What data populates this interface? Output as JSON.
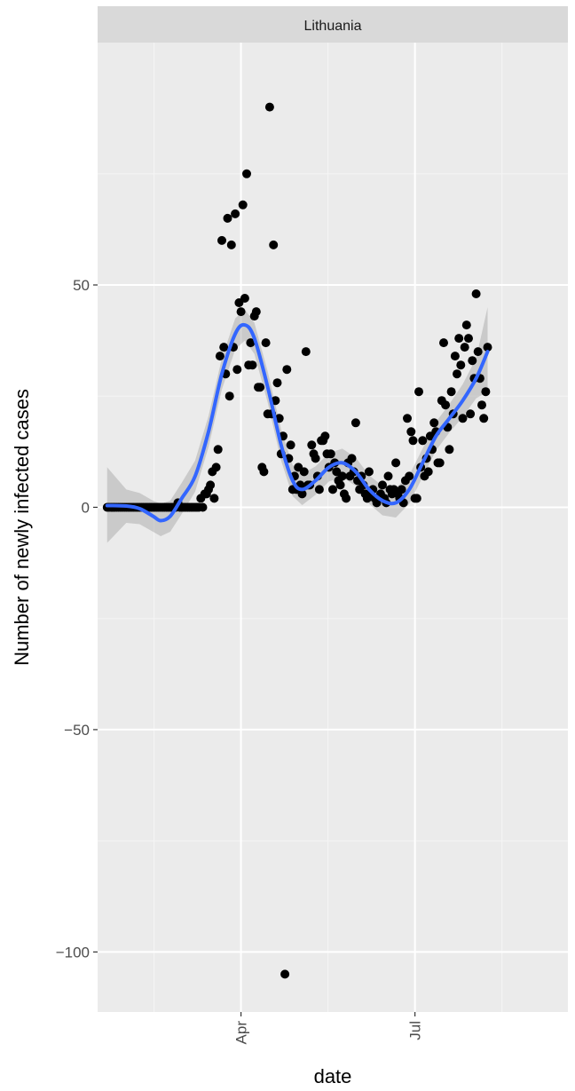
{
  "chart_data": {
    "type": "scatter",
    "panel_title": "Lithuania",
    "xlabel": "date",
    "ylabel": "Number of newly infected cases",
    "x_ticks": [
      {
        "date": "2020-04-01",
        "label": "Apr"
      },
      {
        "date": "2020-07-01",
        "label": "Jul"
      }
    ],
    "y_ticks": [
      {
        "value": 50,
        "label": "50"
      },
      {
        "value": 0,
        "label": "0"
      },
      {
        "value": -50,
        "label": "−50"
      },
      {
        "value": -100,
        "label": "−100"
      }
    ],
    "xlim": [
      "2020-01-17",
      "2020-09-19"
    ],
    "ylim": [
      -113.5,
      104.5
    ],
    "grid": true,
    "legend": "none",
    "colors": {
      "panel_bg": "#ebebeb",
      "strip_bg": "#d9d9d9",
      "grid_major": "#ffffff",
      "grid_minor": "#f5f5f5",
      "point": "#000000",
      "smooth_line": "#3366ff",
      "ribbon": "#999999"
    },
    "points": [
      [
        "2020-01-22",
        0
      ],
      [
        "2020-01-23",
        0
      ],
      [
        "2020-01-24",
        0
      ],
      [
        "2020-01-25",
        0
      ],
      [
        "2020-01-26",
        0
      ],
      [
        "2020-01-27",
        0
      ],
      [
        "2020-01-28",
        0
      ],
      [
        "2020-01-29",
        0
      ],
      [
        "2020-01-30",
        0
      ],
      [
        "2020-01-31",
        0
      ],
      [
        "2020-02-01",
        0
      ],
      [
        "2020-02-02",
        0
      ],
      [
        "2020-02-03",
        0
      ],
      [
        "2020-02-04",
        0
      ],
      [
        "2020-02-05",
        0
      ],
      [
        "2020-02-06",
        0
      ],
      [
        "2020-02-07",
        0
      ],
      [
        "2020-02-08",
        0
      ],
      [
        "2020-02-09",
        0
      ],
      [
        "2020-02-10",
        0
      ],
      [
        "2020-02-11",
        0
      ],
      [
        "2020-02-12",
        0
      ],
      [
        "2020-02-13",
        0
      ],
      [
        "2020-02-14",
        0
      ],
      [
        "2020-02-15",
        0
      ],
      [
        "2020-02-16",
        0
      ],
      [
        "2020-02-17",
        0
      ],
      [
        "2020-02-18",
        0
      ],
      [
        "2020-02-19",
        0
      ],
      [
        "2020-02-20",
        0
      ],
      [
        "2020-02-21",
        0
      ],
      [
        "2020-02-22",
        0
      ],
      [
        "2020-02-23",
        0
      ],
      [
        "2020-02-24",
        0
      ],
      [
        "2020-02-25",
        0
      ],
      [
        "2020-02-26",
        0
      ],
      [
        "2020-02-27",
        0
      ],
      [
        "2020-02-28",
        1
      ],
      [
        "2020-02-29",
        0
      ],
      [
        "2020-03-01",
        0
      ],
      [
        "2020-03-02",
        0
      ],
      [
        "2020-03-03",
        0
      ],
      [
        "2020-03-04",
        0
      ],
      [
        "2020-03-05",
        0
      ],
      [
        "2020-03-06",
        0
      ],
      [
        "2020-03-07",
        0
      ],
      [
        "2020-03-08",
        0
      ],
      [
        "2020-03-09",
        0
      ],
      [
        "2020-03-10",
        0
      ],
      [
        "2020-03-11",
        2
      ],
      [
        "2020-03-12",
        0
      ],
      [
        "2020-03-13",
        3
      ],
      [
        "2020-03-14",
        3
      ],
      [
        "2020-03-15",
        4
      ],
      [
        "2020-03-16",
        5
      ],
      [
        "2020-03-17",
        8
      ],
      [
        "2020-03-18",
        2
      ],
      [
        "2020-03-19",
        9
      ],
      [
        "2020-03-20",
        13
      ],
      [
        "2020-03-21",
        34
      ],
      [
        "2020-03-22",
        60
      ],
      [
        "2020-03-23",
        36
      ],
      [
        "2020-03-24",
        30
      ],
      [
        "2020-03-25",
        65
      ],
      [
        "2020-03-26",
        25
      ],
      [
        "2020-03-27",
        59
      ],
      [
        "2020-03-28",
        36
      ],
      [
        "2020-03-29",
        66
      ],
      [
        "2020-03-30",
        31
      ],
      [
        "2020-03-31",
        46
      ],
      [
        "2020-04-01",
        44
      ],
      [
        "2020-04-02",
        68
      ],
      [
        "2020-04-03",
        47
      ],
      [
        "2020-04-04",
        75
      ],
      [
        "2020-04-05",
        32
      ],
      [
        "2020-04-06",
        37
      ],
      [
        "2020-04-07",
        32
      ],
      [
        "2020-04-08",
        43
      ],
      [
        "2020-04-09",
        44
      ],
      [
        "2020-04-10",
        27
      ],
      [
        "2020-04-11",
        27
      ],
      [
        "2020-04-12",
        9
      ],
      [
        "2020-04-13",
        8
      ],
      [
        "2020-04-14",
        37
      ],
      [
        "2020-04-15",
        21
      ],
      [
        "2020-04-16",
        90
      ],
      [
        "2020-04-17",
        21
      ],
      [
        "2020-04-18",
        59
      ],
      [
        "2020-04-19",
        24
      ],
      [
        "2020-04-20",
        28
      ],
      [
        "2020-04-21",
        20
      ],
      [
        "2020-04-22",
        12
      ],
      [
        "2020-04-23",
        16
      ],
      [
        "2020-04-24",
        -105
      ],
      [
        "2020-04-25",
        31
      ],
      [
        "2020-04-26",
        11
      ],
      [
        "2020-04-27",
        14
      ],
      [
        "2020-04-28",
        4
      ],
      [
        "2020-04-29",
        7
      ],
      [
        "2020-04-30",
        4
      ],
      [
        "2020-05-01",
        9
      ],
      [
        "2020-05-02",
        5
      ],
      [
        "2020-05-03",
        3
      ],
      [
        "2020-05-04",
        8
      ],
      [
        "2020-05-05",
        35
      ],
      [
        "2020-05-06",
        5
      ],
      [
        "2020-05-07",
        5
      ],
      [
        "2020-05-08",
        14
      ],
      [
        "2020-05-09",
        12
      ],
      [
        "2020-05-10",
        11
      ],
      [
        "2020-05-11",
        7
      ],
      [
        "2020-05-12",
        4
      ],
      [
        "2020-05-13",
        15
      ],
      [
        "2020-05-14",
        15
      ],
      [
        "2020-05-15",
        16
      ],
      [
        "2020-05-16",
        12
      ],
      [
        "2020-05-17",
        9
      ],
      [
        "2020-05-18",
        12
      ],
      [
        "2020-05-19",
        4
      ],
      [
        "2020-05-20",
        10
      ],
      [
        "2020-05-21",
        8
      ],
      [
        "2020-05-22",
        6
      ],
      [
        "2020-05-23",
        5
      ],
      [
        "2020-05-24",
        7
      ],
      [
        "2020-05-25",
        3
      ],
      [
        "2020-05-26",
        2
      ],
      [
        "2020-05-27",
        10
      ],
      [
        "2020-05-28",
        7
      ],
      [
        "2020-05-29",
        11
      ],
      [
        "2020-05-30",
        8
      ],
      [
        "2020-05-31",
        19
      ],
      [
        "2020-06-01",
        6
      ],
      [
        "2020-06-02",
        4
      ],
      [
        "2020-06-03",
        7
      ],
      [
        "2020-06-04",
        5
      ],
      [
        "2020-06-05",
        3
      ],
      [
        "2020-06-06",
        2
      ],
      [
        "2020-06-07",
        8
      ],
      [
        "2020-06-08",
        3
      ],
      [
        "2020-06-09",
        4
      ],
      [
        "2020-06-10",
        2
      ],
      [
        "2020-06-11",
        1
      ],
      [
        "2020-06-12",
        2
      ],
      [
        "2020-06-13",
        3
      ],
      [
        "2020-06-14",
        5
      ],
      [
        "2020-06-15",
        2
      ],
      [
        "2020-06-16",
        1
      ],
      [
        "2020-06-17",
        7
      ],
      [
        "2020-06-18",
        4
      ],
      [
        "2020-06-19",
        3
      ],
      [
        "2020-06-20",
        4
      ],
      [
        "2020-06-21",
        10
      ],
      [
        "2020-06-22",
        3
      ],
      [
        "2020-06-23",
        2
      ],
      [
        "2020-06-24",
        4
      ],
      [
        "2020-06-25",
        1
      ],
      [
        "2020-06-26",
        6
      ],
      [
        "2020-06-27",
        20
      ],
      [
        "2020-06-28",
        7
      ],
      [
        "2020-06-29",
        17
      ],
      [
        "2020-06-30",
        15
      ],
      [
        "2020-07-01",
        2
      ],
      [
        "2020-07-02",
        2
      ],
      [
        "2020-07-03",
        26
      ],
      [
        "2020-07-04",
        9
      ],
      [
        "2020-07-05",
        15
      ],
      [
        "2020-07-06",
        7
      ],
      [
        "2020-07-07",
        11
      ],
      [
        "2020-07-08",
        8
      ],
      [
        "2020-07-09",
        16
      ],
      [
        "2020-07-10",
        13
      ],
      [
        "2020-07-11",
        19
      ],
      [
        "2020-07-12",
        17
      ],
      [
        "2020-07-13",
        10
      ],
      [
        "2020-07-14",
        10
      ],
      [
        "2020-07-15",
        24
      ],
      [
        "2020-07-16",
        37
      ],
      [
        "2020-07-17",
        23
      ],
      [
        "2020-07-18",
        18
      ],
      [
        "2020-07-19",
        13
      ],
      [
        "2020-07-20",
        26
      ],
      [
        "2020-07-21",
        21
      ],
      [
        "2020-07-22",
        34
      ],
      [
        "2020-07-23",
        30
      ],
      [
        "2020-07-24",
        38
      ],
      [
        "2020-07-25",
        32
      ],
      [
        "2020-07-26",
        20
      ],
      [
        "2020-07-27",
        36
      ],
      [
        "2020-07-28",
        41
      ],
      [
        "2020-07-29",
        38
      ],
      [
        "2020-07-30",
        21
      ],
      [
        "2020-07-31",
        33
      ],
      [
        "2020-08-01",
        29
      ],
      [
        "2020-08-02",
        48
      ],
      [
        "2020-08-03",
        35
      ],
      [
        "2020-08-04",
        29
      ],
      [
        "2020-08-05",
        23
      ],
      [
        "2020-08-06",
        20
      ],
      [
        "2020-08-07",
        26
      ],
      [
        "2020-08-08",
        36
      ]
    ],
    "smooth": [
      [
        "2020-01-22",
        0.4,
        -8,
        9
      ],
      [
        "2020-02-01",
        0.3,
        -3.5,
        4
      ],
      [
        "2020-02-08",
        -0.3,
        -3.8,
        3.2
      ],
      [
        "2020-02-15",
        -2,
        -5.5,
        1.5
      ],
      [
        "2020-02-19",
        -3,
        -6.5,
        0.8
      ],
      [
        "2020-02-24",
        -2,
        -5.5,
        1.5
      ],
      [
        "2020-03-01",
        2,
        -1.5,
        5.5
      ],
      [
        "2020-03-08",
        7,
        3.5,
        10.5
      ],
      [
        "2020-03-15",
        17,
        13.5,
        20.5
      ],
      [
        "2020-03-22",
        30,
        26.5,
        33.5
      ],
      [
        "2020-03-29",
        39,
        35.5,
        42.5
      ],
      [
        "2020-04-03",
        41,
        37.5,
        44.5
      ],
      [
        "2020-04-08",
        38,
        34.5,
        41.5
      ],
      [
        "2020-04-15",
        27,
        23.5,
        30.5
      ],
      [
        "2020-04-22",
        14,
        10.5,
        17.5
      ],
      [
        "2020-04-28",
        6,
        2.5,
        9.5
      ],
      [
        "2020-05-03",
        4,
        0.5,
        7.5
      ],
      [
        "2020-05-10",
        6,
        2.8,
        9.2
      ],
      [
        "2020-05-17",
        9,
        5.8,
        12.2
      ],
      [
        "2020-05-24",
        10,
        6.8,
        13.2
      ],
      [
        "2020-05-31",
        8,
        4.8,
        11.2
      ],
      [
        "2020-06-07",
        4,
        0.8,
        7.2
      ],
      [
        "2020-06-14",
        1.5,
        -1.8,
        4.8
      ],
      [
        "2020-06-21",
        1,
        -2.3,
        4.3
      ],
      [
        "2020-06-28",
        4,
        0.8,
        7.2
      ],
      [
        "2020-07-05",
        10,
        6.8,
        13.2
      ],
      [
        "2020-07-12",
        16,
        12.8,
        19.2
      ],
      [
        "2020-07-19",
        20,
        16.8,
        23.2
      ],
      [
        "2020-07-26",
        24,
        20.3,
        27.7
      ],
      [
        "2020-08-02",
        29,
        24.5,
        33.5
      ],
      [
        "2020-08-08",
        35,
        26,
        45
      ]
    ]
  }
}
